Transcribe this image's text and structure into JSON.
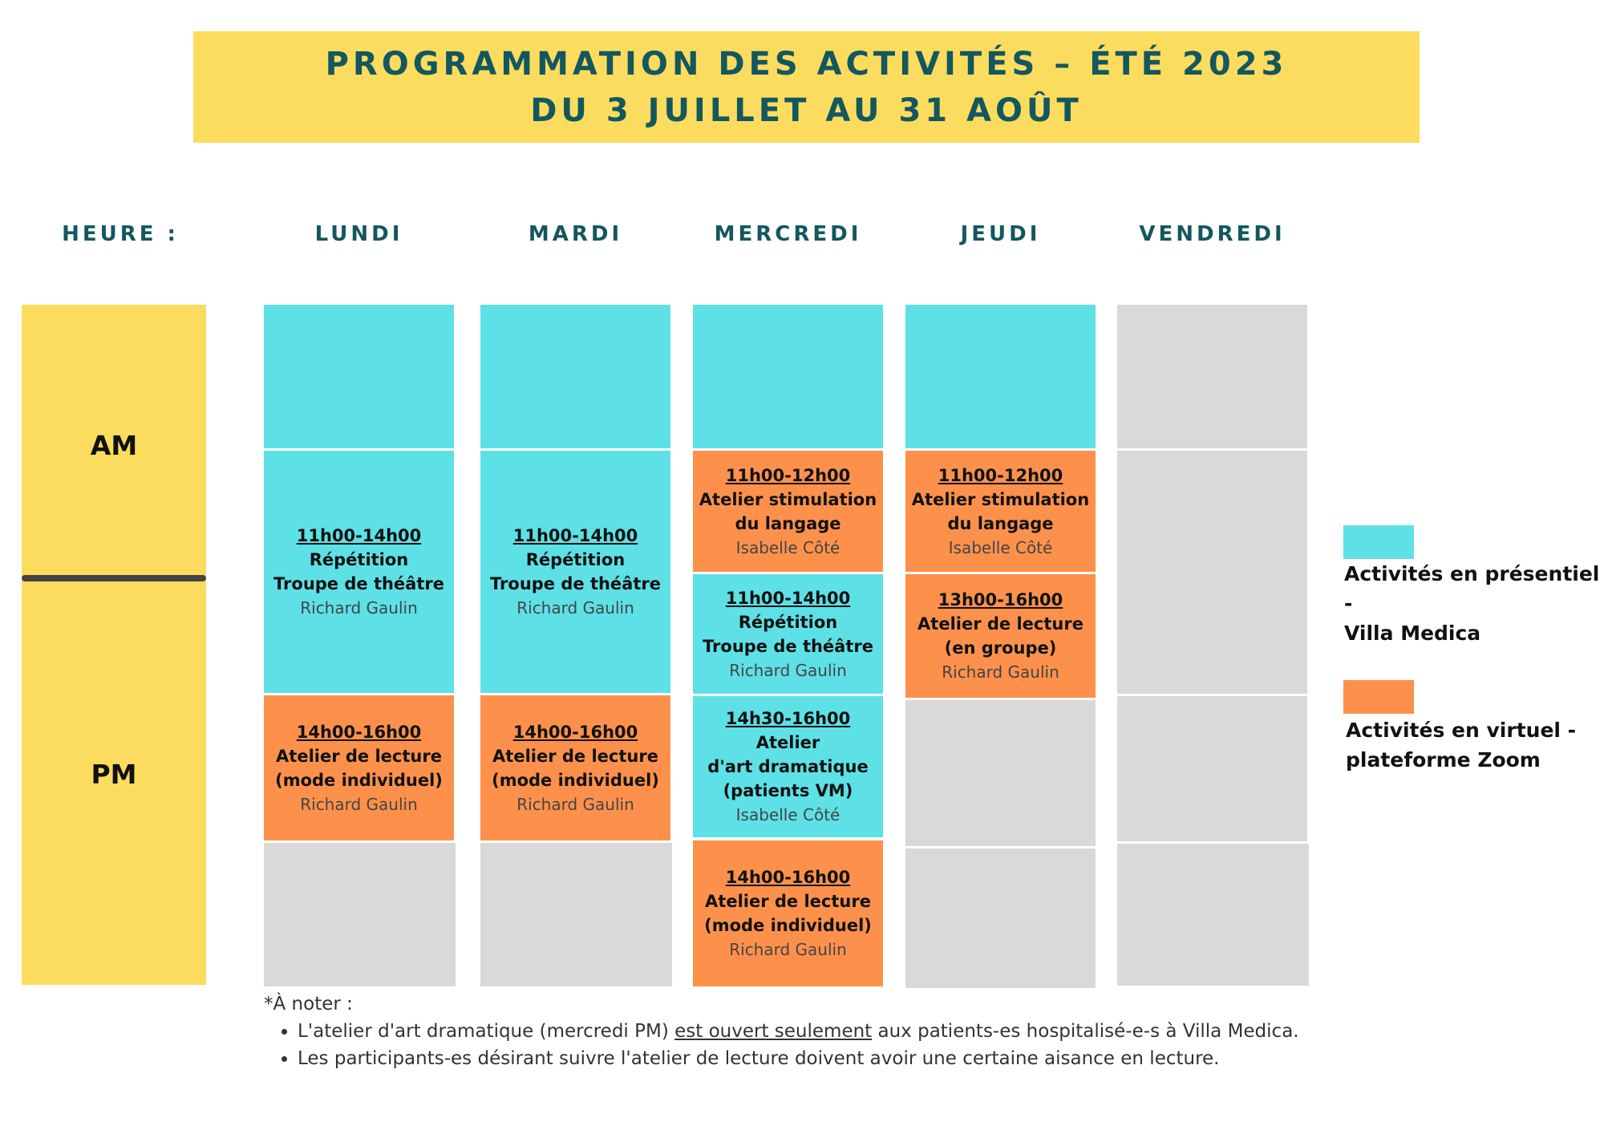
{
  "header": {
    "title_line1": "PROGRAMMATION DES ACTIVITÉS – ÉTÉ 2023",
    "title_line2": "DU 3 JUILLET AU 31 AOÛT"
  },
  "columns": {
    "heure": "HEURE :",
    "days": [
      "LUNDI",
      "MARDI",
      "MERCREDI",
      "JEUDI",
      "VENDREDI"
    ]
  },
  "periods": {
    "am": "AM",
    "pm": "PM"
  },
  "schedule": {
    "lundi": [
      {
        "time": "11h00-14h00",
        "name_line1": "Répétition",
        "name_line2": "Troupe de théâtre",
        "person": "Richard Gaulin"
      },
      {
        "time": "14h00-16h00",
        "name_line1": "Atelier de lecture",
        "name_line2": "(mode individuel)",
        "person": "Richard Gaulin"
      }
    ],
    "mardi": [
      {
        "time": "11h00-14h00",
        "name_line1": "Répétition",
        "name_line2": "Troupe de théâtre",
        "person": "Richard Gaulin"
      },
      {
        "time": "14h00-16h00",
        "name_line1": "Atelier de lecture",
        "name_line2": "(mode individuel)",
        "person": "Richard Gaulin"
      }
    ],
    "mercredi": [
      {
        "time": "11h00-12h00",
        "name_line1": "Atelier stimulation",
        "name_line2": "du langage",
        "person": "Isabelle Côté"
      },
      {
        "time": "11h00-14h00",
        "name_line1": "Répétition",
        "name_line2": "Troupe de théâtre",
        "person": "Richard Gaulin"
      },
      {
        "time": "14h30-16h00",
        "name_line1": "Atelier",
        "name_line2": "d'art dramatique",
        "name_line3": "(patients VM)",
        "person": "Isabelle Côté"
      },
      {
        "time": "14h00-16h00",
        "name_line1": "Atelier de lecture",
        "name_line2": "(mode individuel)",
        "person": "Richard Gaulin"
      }
    ],
    "jeudi": [
      {
        "time": "11h00-12h00",
        "name_line1": "Atelier stimulation",
        "name_line2": "du langage",
        "person": "Isabelle Côté"
      },
      {
        "time": "13h00-16h00",
        "name_line1": "Atelier de lecture",
        "name_line2": "(en groupe)",
        "person": "Richard Gaulin"
      }
    ]
  },
  "legend": {
    "presentiel_line1": "Activités en présentiel -",
    "presentiel_line2": "Villa Medica",
    "virtuel_line1": "Activités en virtuel -",
    "virtuel_line2": "plateforme Zoom"
  },
  "colors": {
    "banner": "#fcdc5f",
    "presentiel": "#5de1e6",
    "virtuel": "#fd914c",
    "empty": "#d9d9d9",
    "heading": "#13575f"
  },
  "notes": {
    "heading": "*À noter :",
    "bullet1_before": "L'atelier d'art dramatique (mercredi PM) ",
    "bullet1_underlined": "est ouvert seulement",
    "bullet1_after": " aux patients-es hospitalisé-e-s à Villa Medica.",
    "bullet2": "Les participants-es désirant suivre l'atelier de lecture doivent avoir une certaine aisance en lecture."
  }
}
